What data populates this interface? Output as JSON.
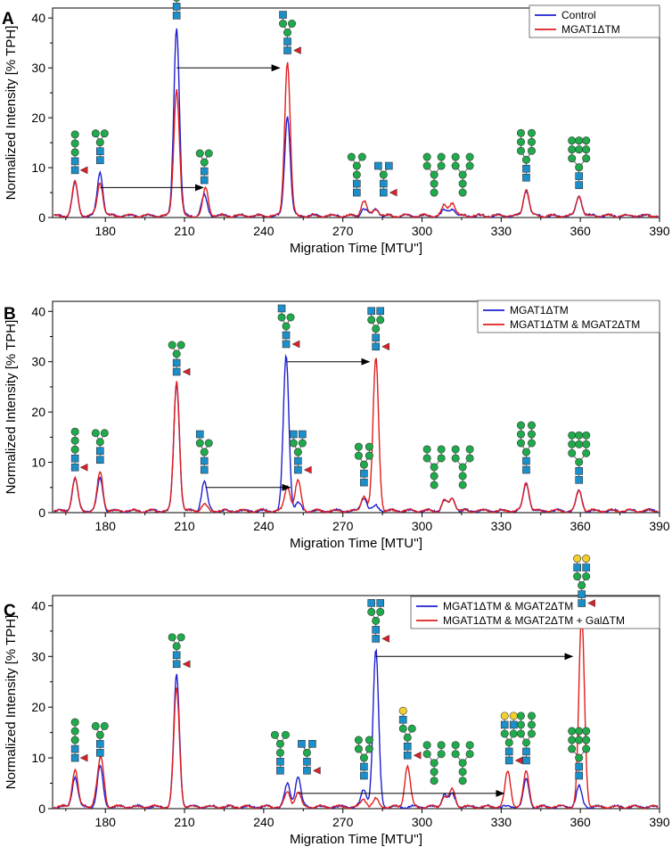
{
  "chart_data": [
    {
      "panel": "A",
      "type": "line",
      "xlabel": "Migration Time [MTU'']",
      "ylabel": "Normalized Intensity [% TPH]",
      "xlim": [
        160,
        390
      ],
      "ylim": [
        0,
        42
      ],
      "xticks": [
        180,
        210,
        240,
        270,
        300,
        330,
        360,
        390
      ],
      "yticks": [
        0,
        10,
        20,
        30,
        40
      ],
      "legend_position": "top-right",
      "series": [
        {
          "name": "Control",
          "color": "#1f1fd0",
          "peaks": [
            [
              168.5,
              6.5
            ],
            [
              178,
              8.8
            ],
            [
              207,
              38
            ],
            [
              217.5,
              4
            ],
            [
              249,
              20
            ],
            [
              278,
              1.5
            ],
            [
              282.5,
              1.5
            ],
            [
              308.5,
              1
            ],
            [
              311.5,
              1.5
            ],
            [
              339.5,
              5.2
            ],
            [
              359.5,
              4
            ]
          ]
        },
        {
          "name": "MGAT1ΔTM",
          "color": "#e01e1e",
          "peaks": [
            [
              168.5,
              6.8
            ],
            [
              178,
              6.8
            ],
            [
              207,
              25.5
            ],
            [
              218,
              5.5
            ],
            [
              249,
              31
            ],
            [
              278,
              3
            ],
            [
              282.5,
              1.5
            ],
            [
              308.5,
              2
            ],
            [
              311.5,
              2.8
            ],
            [
              339.5,
              5.5
            ],
            [
              359.5,
              4.2
            ]
          ]
        }
      ],
      "annotations": [
        {
          "type": "arrow",
          "from": [
            178,
            6
          ],
          "to": [
            217,
            6
          ]
        },
        {
          "type": "arrow",
          "from": [
            207,
            30
          ],
          "to": [
            246,
            30
          ]
        }
      ]
    },
    {
      "panel": "B",
      "type": "line",
      "xlabel": "Migration Time [MTU'']",
      "ylabel": "Normalized Intensity [% TPH]",
      "xlim": [
        160,
        390
      ],
      "ylim": [
        0,
        42
      ],
      "xticks": [
        180,
        210,
        240,
        270,
        300,
        330,
        360,
        390
      ],
      "yticks": [
        0,
        10,
        20,
        30,
        40
      ],
      "legend_position": "top-right",
      "series": [
        {
          "name": "MGAT1ΔTM",
          "color": "#1f1fd0",
          "peaks": [
            [
              168.5,
              6.3
            ],
            [
              178,
              6.5
            ],
            [
              207,
              25.5
            ],
            [
              217.5,
              5.8
            ],
            [
              248.5,
              31
            ],
            [
              253,
              1.5
            ],
            [
              278,
              2.8
            ],
            [
              282.5,
              1
            ],
            [
              308.5,
              2
            ],
            [
              311.5,
              2.5
            ],
            [
              339.5,
              5.5
            ],
            [
              359.5,
              4
            ]
          ]
        },
        {
          "name": "MGAT1ΔTM & MGAT2ΔTM",
          "color": "#e01e1e",
          "peaks": [
            [
              168.5,
              6.5
            ],
            [
              178,
              7.8
            ],
            [
              207,
              26
            ],
            [
              217.5,
              1.2
            ],
            [
              249,
              5
            ],
            [
              253,
              6
            ],
            [
              278,
              3
            ],
            [
              282.5,
              30.5
            ],
            [
              308.5,
              2
            ],
            [
              311.5,
              2.5
            ],
            [
              339.5,
              5.8
            ],
            [
              359.5,
              4.2
            ]
          ]
        }
      ],
      "annotations": [
        {
          "type": "arrow",
          "from": [
            218,
            5
          ],
          "to": [
            250,
            5
          ]
        },
        {
          "type": "arrow",
          "from": [
            249,
            30
          ],
          "to": [
            280,
            30
          ]
        }
      ]
    },
    {
      "panel": "C",
      "type": "line",
      "xlabel": "Migration Time [MTU'']",
      "ylabel": "Normalized Intensity [% TPH]",
      "xlim": [
        160,
        390
      ],
      "ylim": [
        0,
        42
      ],
      "xticks": [
        180,
        210,
        240,
        270,
        300,
        330,
        360,
        390
      ],
      "yticks": [
        0,
        10,
        20,
        30,
        40
      ],
      "legend_position": "top-right",
      "series": [
        {
          "name": "MGAT1ΔTM & MGAT2ΔTM",
          "color": "#1f1fd0",
          "peaks": [
            [
              168.5,
              6
            ],
            [
              178,
              8
            ],
            [
              207,
              26
            ],
            [
              249,
              4.5
            ],
            [
              253,
              6
            ],
            [
              278,
              3.5
            ],
            [
              282.5,
              31
            ],
            [
              308.5,
              2.5
            ],
            [
              311.5,
              2.5
            ],
            [
              339.5,
              5.5
            ],
            [
              359.5,
              4
            ]
          ]
        },
        {
          "name": "MGAT1ΔTM & MGAT2ΔTM + GalΔTM",
          "color": "#e01e1e",
          "peaks": [
            [
              168.5,
              7.5
            ],
            [
              177,
              3
            ],
            [
              178.5,
              8.5
            ],
            [
              207,
              23.5
            ],
            [
              249,
              3
            ],
            [
              253,
              3
            ],
            [
              278,
              1.5
            ],
            [
              282.5,
              1.5
            ],
            [
              294.5,
              8
            ],
            [
              308.5,
              2
            ],
            [
              311.5,
              3.5
            ],
            [
              332.5,
              7
            ],
            [
              339.5,
              7
            ],
            [
              360.5,
              38
            ]
          ]
        }
      ],
      "annotations": [
        {
          "type": "arrow",
          "from": [
            253,
            3
          ],
          "to": [
            331,
            3
          ]
        },
        {
          "type": "arrow",
          "from": [
            282.5,
            30
          ],
          "to": [
            357,
            30
          ]
        }
      ]
    }
  ]
}
